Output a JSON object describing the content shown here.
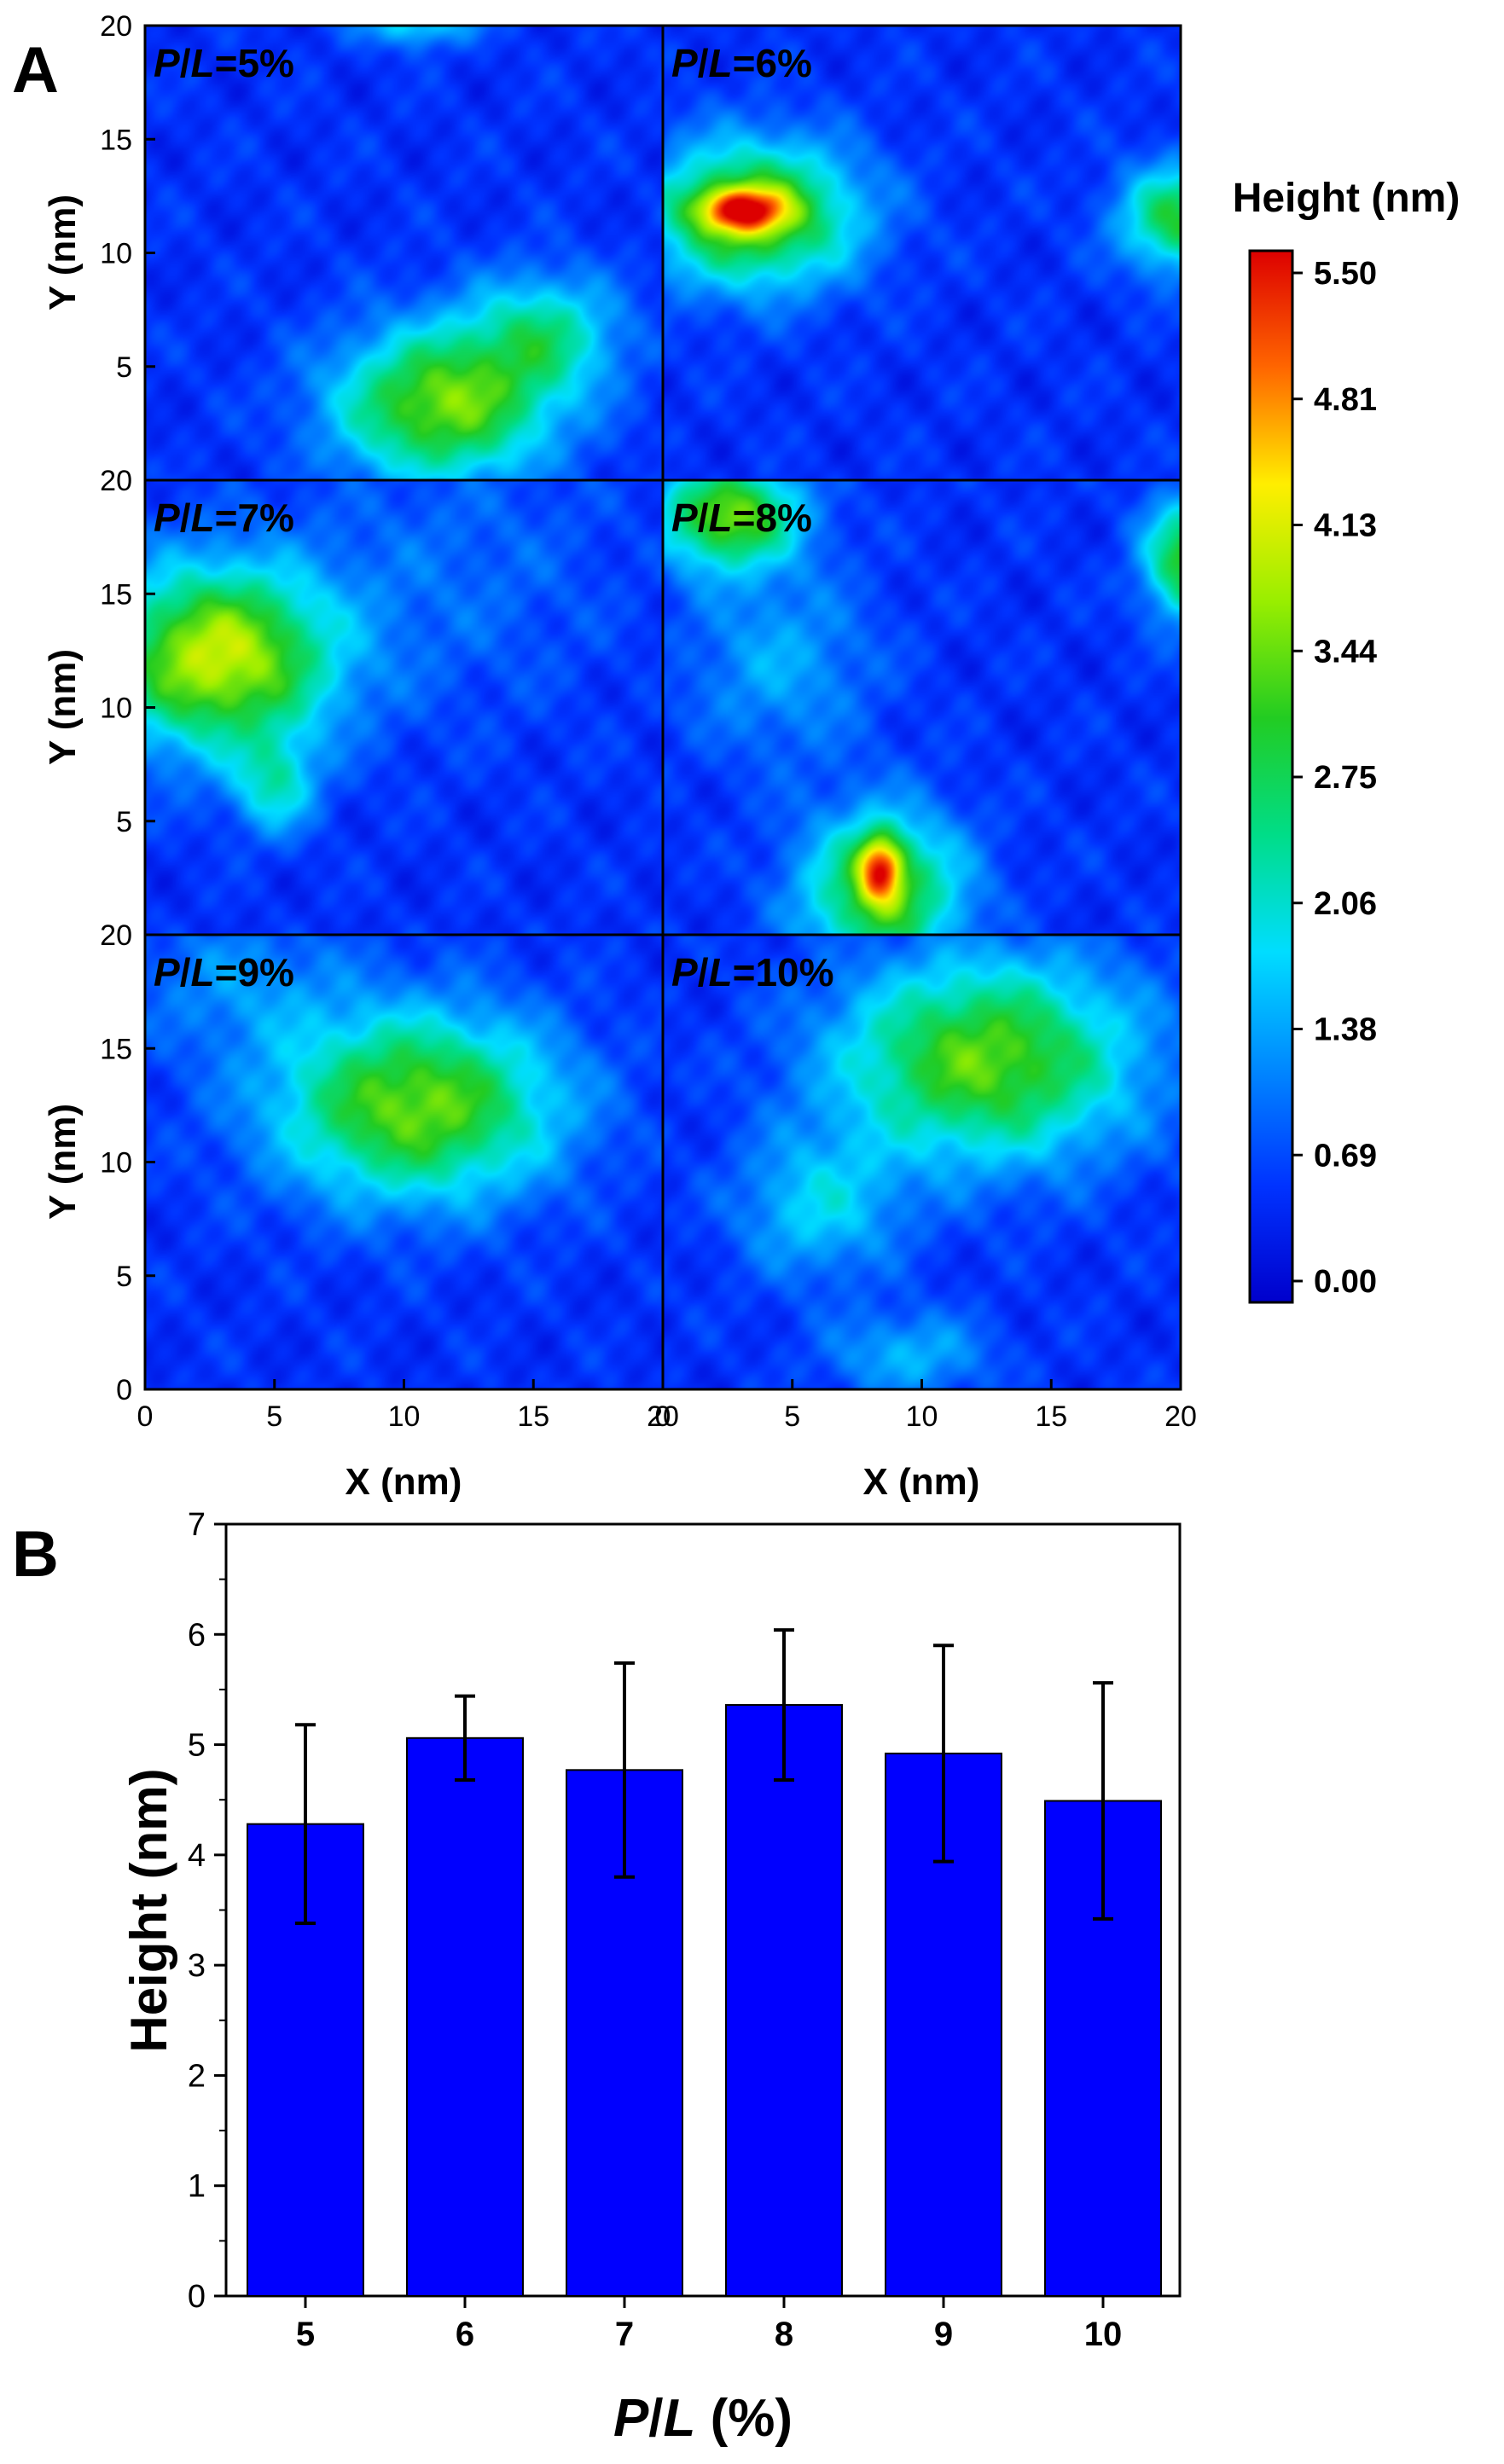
{
  "panel_labels": {
    "a": "A",
    "b": "B"
  },
  "chart_data": [
    {
      "type": "heatmap",
      "panel": "A",
      "colorbar": {
        "title": "Height (nm)",
        "ticks": [
          "5.50",
          "4.81",
          "4.13",
          "3.44",
          "2.75",
          "2.06",
          "1.38",
          "0.69",
          "0.00"
        ],
        "range": [
          0,
          5.5
        ],
        "colors": [
          "#0000cc",
          "#0033ff",
          "#0088ff",
          "#00ddff",
          "#00dd88",
          "#22cc22",
          "#99ee00",
          "#ffee00",
          "#ff6600",
          "#dd0000"
        ]
      },
      "xlabel": "X (nm)",
      "ylabel": "Y (nm)",
      "xlim": [
        0,
        20
      ],
      "ylim": [
        0,
        20
      ],
      "xticks": [
        "0",
        "5",
        "10",
        "15",
        "20"
      ],
      "yticks": [
        "0",
        "5",
        "10",
        "15",
        "20"
      ],
      "maps": [
        {
          "label_p": "P",
          "label_l": "L",
          "label_val": "=5%",
          "bumps": [
            {
              "x": 11.5,
              "y": 3.3,
              "sx": 4.0,
              "sy": 3.2,
              "h": 2.9
            },
            {
              "x": 15.5,
              "y": 6.5,
              "sx": 2.8,
              "sy": 2.5,
              "h": 1.6
            },
            {
              "x": 10.5,
              "y": 20.2,
              "sx": 2.2,
              "sy": 1.0,
              "h": 1.4
            }
          ]
        },
        {
          "label_p": "P",
          "label_l": "L",
          "label_val": "=6%",
          "bumps": [
            {
              "x": 3.5,
              "y": 11.7,
              "sx": 3.8,
              "sy": 3.0,
              "h": 3.0
            },
            {
              "x": 3.0,
              "y": 11.9,
              "sx": 1.6,
              "sy": 0.9,
              "h": 2.6
            },
            {
              "x": 20.0,
              "y": 11.5,
              "sx": 2.2,
              "sy": 2.2,
              "h": 2.4
            }
          ]
        },
        {
          "label_p": "P",
          "label_l": "L",
          "label_val": "=7%",
          "bumps": [
            {
              "x": 2.8,
              "y": 12.2,
              "sx": 4.2,
              "sy": 3.8,
              "h": 3.4
            },
            {
              "x": 5.0,
              "y": 6.5,
              "sx": 1.5,
              "sy": 2.0,
              "h": 1.4
            },
            {
              "x": 12.0,
              "y": 16.0,
              "sx": 6.0,
              "sy": 6.0,
              "h": 0.45
            }
          ]
        },
        {
          "label_p": "P",
          "label_l": "L",
          "label_val": "=8%",
          "bumps": [
            {
              "x": 8.5,
              "y": 1.8,
              "sx": 3.0,
              "sy": 3.4,
              "h": 2.6
            },
            {
              "x": 8.4,
              "y": 2.9,
              "sx": 0.8,
              "sy": 1.4,
              "h": 2.7
            },
            {
              "x": 2.5,
              "y": 18.5,
              "sx": 2.6,
              "sy": 2.2,
              "h": 2.9
            },
            {
              "x": 20.3,
              "y": 16.5,
              "sx": 1.6,
              "sy": 2.5,
              "h": 2.6
            },
            {
              "x": 4.5,
              "y": 12.0,
              "sx": 3.5,
              "sy": 4.0,
              "h": 0.9
            }
          ]
        },
        {
          "label_p": "P",
          "label_l": "L",
          "label_val": "=9%",
          "bumps": [
            {
              "x": 10.5,
              "y": 12.5,
              "sx": 5.2,
              "sy": 3.9,
              "h": 2.9
            },
            {
              "x": 3.5,
              "y": 18.0,
              "sx": 4.0,
              "sy": 3.0,
              "h": 0.7
            }
          ]
        },
        {
          "label_p": "P",
          "label_l": "L",
          "label_val": "=10%",
          "bumps": [
            {
              "x": 12.5,
              "y": 14.5,
              "sx": 5.5,
              "sy": 4.2,
              "h": 2.8
            },
            {
              "x": 6.0,
              "y": 8.0,
              "sx": 3.0,
              "sy": 3.0,
              "h": 1.2
            },
            {
              "x": 9.5,
              "y": 1.5,
              "sx": 3.0,
              "sy": 1.8,
              "h": 1.0
            }
          ]
        }
      ]
    },
    {
      "type": "bar",
      "panel": "B",
      "categories": [
        "5",
        "6",
        "7",
        "8",
        "9",
        "10"
      ],
      "values": [
        4.28,
        5.06,
        4.77,
        5.36,
        4.92,
        4.49
      ],
      "errors": [
        0.9,
        0.38,
        0.97,
        0.68,
        0.98,
        1.07
      ],
      "xlabel_p": "P",
      "xlabel_l": "L",
      "xlabel_unit": " (%)",
      "ylabel": "Height (nm)",
      "ylim": [
        0,
        7
      ],
      "yticks": [
        "0",
        "1",
        "2",
        "3",
        "4",
        "5",
        "6",
        "7"
      ],
      "bar_color": "#0000ff"
    }
  ]
}
